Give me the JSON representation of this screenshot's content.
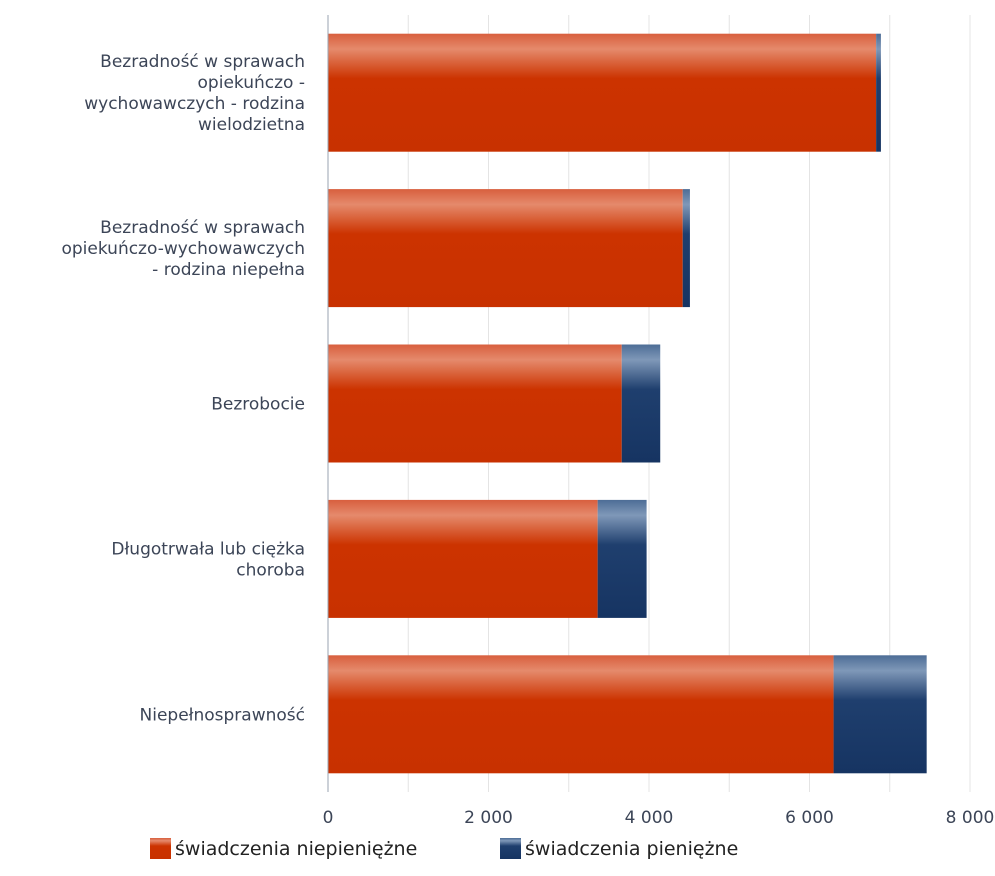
{
  "chart_data": {
    "type": "bar",
    "orientation": "horizontal",
    "stacked": true,
    "categories": [
      [
        "Bezradność w sprawach",
        "opiekuńczo -",
        "wychowawczych - rodzina",
        "wielodzietna"
      ],
      [
        "Bezradność w sprawach",
        "opiekuńczo-wychowawczych",
        "- rodzina niepełna"
      ],
      [
        "Bezrobocie"
      ],
      [
        "Długotrwała lub ciężka",
        "choroba"
      ],
      [
        "Niepełnosprawność"
      ]
    ],
    "series": [
      {
        "name": "świadczenia niepieniężne",
        "color": "#cc3300",
        "values": [
          6830,
          4420,
          3660,
          3360,
          6300
        ]
      },
      {
        "name": "świadczenia pieniężne",
        "color": "#1f3f6e",
        "values": [
          60,
          90,
          480,
          610,
          1160
        ]
      }
    ],
    "xlim": [
      0,
      8000
    ],
    "xticks": [
      "0",
      "2 000",
      "4 000",
      "6 000",
      "8 000"
    ],
    "xtick_values": [
      0,
      2000,
      4000,
      6000,
      8000
    ],
    "grid": true,
    "legend": "bottom"
  }
}
